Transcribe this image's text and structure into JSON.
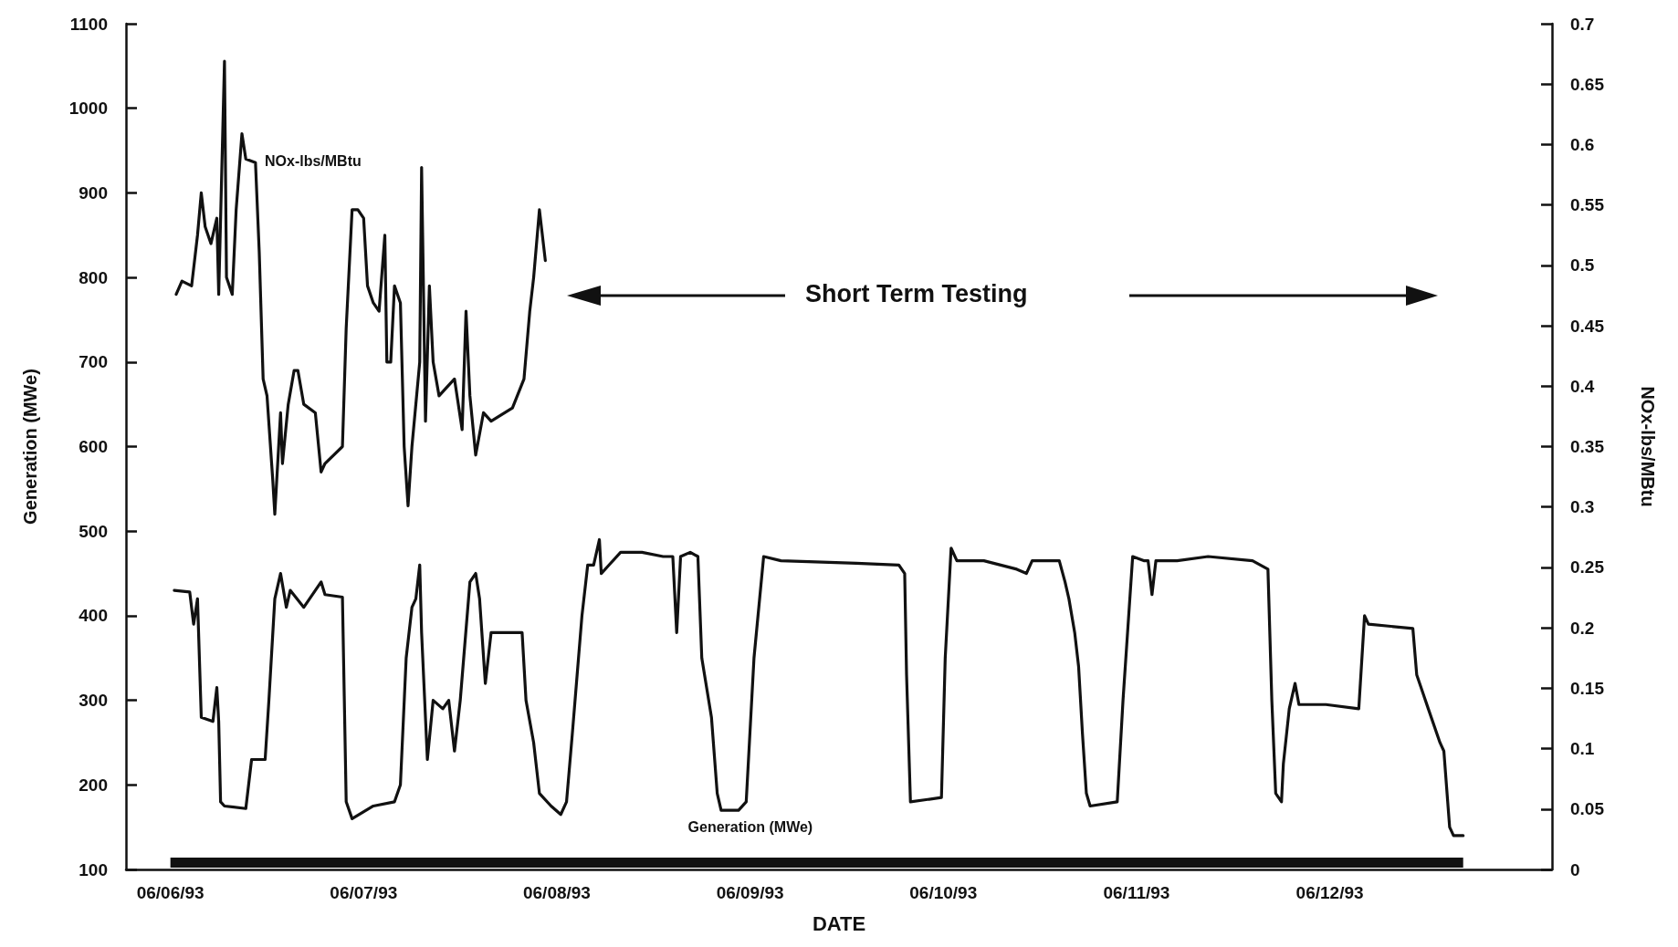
{
  "chart_data": {
    "type": "line",
    "xlabel": "DATE",
    "ylabel": "Generation (MWe)",
    "y2label": "NOx-lbs/MBtu",
    "xlim": [
      "1993-06-05T18:29",
      "1993-06-13T03:36"
    ],
    "xticks": [
      {
        "value": "1993-06-06",
        "label": "06/06/93"
      },
      {
        "value": "1993-06-07",
        "label": "06/07/93"
      },
      {
        "value": "1993-06-08",
        "label": "06/08/93"
      },
      {
        "value": "1993-06-09",
        "label": "06/09/93"
      },
      {
        "value": "1993-06-10",
        "label": "06/10/93"
      },
      {
        "value": "1993-06-11",
        "label": "06/11/93"
      },
      {
        "value": "1993-06-12",
        "label": "06/12/93"
      }
    ],
    "ylim": [
      100,
      1100
    ],
    "yticks": [
      100,
      200,
      300,
      400,
      500,
      600,
      700,
      800,
      900,
      1000,
      1100
    ],
    "y2lim": [
      0,
      0.7
    ],
    "y2ticks": [
      0,
      0.05,
      0.1,
      0.15,
      0.2,
      0.25,
      0.3,
      0.35,
      0.4,
      0.45,
      0.5,
      0.55,
      0.6,
      0.65,
      0.7
    ],
    "grid": false,
    "legend": false,
    "marker": "none",
    "line_style": "solid",
    "annotations": [
      "Short Term Testing"
    ],
    "series": [
      {
        "name": "NOx-lbs/MBtu",
        "color": "#111111",
        "axis": "y2",
        "x": [
          "1993-06-06T00:43",
          "1993-06-06T01:26",
          "1993-06-06T02:38",
          "1993-06-06T03:22",
          "1993-06-06T03:50",
          "1993-06-06T04:19",
          "1993-06-06T05:02",
          "1993-06-06T05:46",
          "1993-06-06T06:00",
          "1993-06-06T06:43",
          "1993-06-06T06:58",
          "1993-06-06T07:41",
          "1993-06-06T08:10",
          "1993-06-06T08:53",
          "1993-06-06T09:22",
          "1993-06-06T10:34",
          "1993-06-06T11:02",
          "1993-06-06T11:31",
          "1993-06-06T12:00",
          "1993-06-06T12:43",
          "1993-06-06T12:58",
          "1993-06-06T13:41",
          "1993-06-06T13:55",
          "1993-06-06T14:38",
          "1993-06-06T15:22",
          "1993-06-06T15:50",
          "1993-06-06T16:34",
          "1993-06-06T18:00",
          "1993-06-06T18:43",
          "1993-06-06T19:12",
          "1993-06-06T21:22",
          "1993-06-06T21:50",
          "1993-06-06T22:34",
          "1993-06-06T23:17",
          "1993-06-07T00:00",
          "1993-06-07T00:29",
          "1993-06-07T01:12",
          "1993-06-07T01:55",
          "1993-06-07T02:38",
          "1993-06-07T02:53",
          "1993-06-07T03:22",
          "1993-06-07T03:50",
          "1993-06-07T04:34",
          "1993-06-07T05:02",
          "1993-06-07T05:31",
          "1993-06-07T06:00",
          "1993-06-07T06:58",
          "1993-06-07T07:12",
          "1993-06-07T07:41",
          "1993-06-07T08:10",
          "1993-06-07T08:38",
          "1993-06-07T09:22",
          "1993-06-07T10:19",
          "1993-06-07T11:17",
          "1993-06-07T12:14",
          "1993-06-07T12:43",
          "1993-06-07T13:12",
          "1993-06-07T13:55",
          "1993-06-07T14:53",
          "1993-06-07T15:50",
          "1993-06-07T18:29",
          "1993-06-07T19:55",
          "1993-06-07T20:38",
          "1993-06-07T21:07",
          "1993-06-07T21:50",
          "1993-06-07T22:34"
        ],
        "values": [
          0.476,
          0.487,
          0.483,
          0.525,
          0.56,
          0.532,
          0.518,
          0.539,
          0.476,
          0.669,
          0.49,
          0.476,
          0.546,
          0.609,
          0.588,
          0.585,
          0.511,
          0.406,
          0.392,
          0.322,
          0.294,
          0.378,
          0.336,
          0.385,
          0.413,
          0.413,
          0.385,
          0.378,
          0.329,
          0.336,
          0.35,
          0.448,
          0.546,
          0.546,
          0.539,
          0.483,
          0.469,
          0.462,
          0.525,
          0.42,
          0.42,
          0.483,
          0.469,
          0.35,
          0.301,
          0.35,
          0.42,
          0.581,
          0.371,
          0.483,
          0.42,
          0.392,
          0.399,
          0.406,
          0.364,
          0.462,
          0.392,
          0.343,
          0.378,
          0.371,
          0.382,
          0.406,
          0.462,
          0.49,
          0.546,
          0.504
        ]
      },
      {
        "name": "Generation (MWe)",
        "color": "#111111",
        "x": [
          "1993-06-06T00:29",
          "1993-06-06T02:24",
          "1993-06-06T02:53",
          "1993-06-06T03:22",
          "1993-06-06T03:50",
          "1993-06-06T05:17",
          "1993-06-06T05:46",
          "1993-06-06T06:00",
          "1993-06-06T06:14",
          "1993-06-06T06:43",
          "1993-06-06T09:22",
          "1993-06-06T10:05",
          "1993-06-06T11:46",
          "1993-06-06T12:14",
          "1993-06-06T12:58",
          "1993-06-06T13:41",
          "1993-06-06T14:24",
          "1993-06-06T14:53",
          "1993-06-06T16:34",
          "1993-06-06T18:43",
          "1993-06-06T19:12",
          "1993-06-06T21:22",
          "1993-06-06T21:50",
          "1993-06-06T22:34",
          "1993-06-07T01:12",
          "1993-06-07T03:50",
          "1993-06-07T04:34",
          "1993-06-07T05:17",
          "1993-06-07T06:00",
          "1993-06-07T06:29",
          "1993-06-07T06:58",
          "1993-06-07T07:12",
          "1993-06-07T07:55",
          "1993-06-07T08:38",
          "1993-06-07T09:50",
          "1993-06-07T10:34",
          "1993-06-07T11:17",
          "1993-06-07T12:00",
          "1993-06-07T13:12",
          "1993-06-07T13:55",
          "1993-06-07T14:24",
          "1993-06-07T15:07",
          "1993-06-07T15:50",
          "1993-06-07T16:34",
          "1993-06-07T19:41",
          "1993-06-07T20:10",
          "1993-06-07T21:07",
          "1993-06-07T21:50",
          "1993-06-07T23:17",
          "1993-06-08T00:29",
          "1993-06-08T01:12",
          "1993-06-08T01:55",
          "1993-06-08T03:07",
          "1993-06-08T03:50",
          "1993-06-08T04:34",
          "1993-06-08T05:17",
          "1993-06-08T05:31",
          "1993-06-08T06:29",
          "1993-06-08T07:55",
          "1993-06-08T10:34",
          "1993-06-08T13:12",
          "1993-06-08T14:24",
          "1993-06-08T14:53",
          "1993-06-08T15:22",
          "1993-06-08T16:34",
          "1993-06-08T17:31",
          "1993-06-08T18:00",
          "1993-06-08T19:12",
          "1993-06-08T19:55",
          "1993-06-08T20:24",
          "1993-06-08T22:34",
          "1993-06-08T23:31",
          "1993-06-09T00:29",
          "1993-06-09T01:41",
          "1993-06-09T03:50",
          "1993-06-09T13:12",
          "1993-06-09T18:29",
          "1993-06-09T19:12",
          "1993-06-09T19:26",
          "1993-06-09T19:55",
          "1993-06-09T23:46",
          "1993-06-10T00:14",
          "1993-06-10T00:58",
          "1993-06-10T01:41",
          "1993-06-10T05:02",
          "1993-06-10T09:07",
          "1993-06-10T10:19",
          "1993-06-10T11:02",
          "1993-06-10T14:24",
          "1993-06-10T15:07",
          "1993-06-10T15:36",
          "1993-06-10T16:19",
          "1993-06-10T16:48",
          "1993-06-10T17:17",
          "1993-06-10T17:46",
          "1993-06-10T18:14",
          "1993-06-10T21:36",
          "1993-06-10T22:19",
          "1993-06-10T23:31",
          "1993-06-11T00:58",
          "1993-06-11T01:26",
          "1993-06-11T01:55",
          "1993-06-11T02:24",
          "1993-06-11T02:53",
          "1993-06-11T05:02",
          "1993-06-11T08:53",
          "1993-06-11T14:24",
          "1993-06-11T16:19",
          "1993-06-11T16:48",
          "1993-06-11T17:17",
          "1993-06-11T18:00",
          "1993-06-11T18:14",
          "1993-06-11T18:58",
          "1993-06-11T19:41",
          "1993-06-11T20:10",
          "1993-06-11T23:31",
          "1993-06-12T03:36",
          "1993-06-12T04:19",
          "1993-06-12T04:48",
          "1993-06-12T10:19",
          "1993-06-12T10:48",
          "1993-06-12T12:14",
          "1993-06-12T13:41",
          "1993-06-12T14:10",
          "1993-06-12T14:53",
          "1993-06-12T15:22",
          "1993-06-12T16:34"
        ],
        "values": [
          430,
          428,
          390,
          420,
          280,
          275,
          315,
          275,
          180,
          175,
          172,
          230,
          230,
          300,
          420,
          450,
          410,
          430,
          410,
          440,
          425,
          422,
          180,
          160,
          175,
          180,
          200,
          350,
          410,
          420,
          460,
          380,
          230,
          300,
          290,
          300,
          240,
          300,
          440,
          450,
          420,
          320,
          380,
          380,
          380,
          300,
          250,
          190,
          175,
          165,
          180,
          260,
          400,
          460,
          460,
          490,
          450,
          460,
          475,
          475,
          470,
          470,
          380,
          470,
          475,
          470,
          350,
          280,
          190,
          170,
          170,
          180,
          350,
          470,
          465,
          462,
          460,
          450,
          330,
          180,
          185,
          350,
          480,
          465,
          465,
          455,
          450,
          465,
          465,
          440,
          420,
          380,
          340,
          260,
          190,
          175,
          180,
          300,
          470,
          465,
          465,
          425,
          465,
          465,
          465,
          470,
          465,
          455,
          300,
          190,
          180,
          225,
          290,
          320,
          295,
          295,
          290,
          400,
          390,
          385,
          330,
          290,
          250,
          240,
          150,
          140,
          140
        ]
      },
      {
        "color": "#111111",
        "x": [
          "1993-06-06T00:00",
          "1993-06-12T16:34"
        ],
        "values": [
          108,
          108
        ]
      }
    ]
  }
}
